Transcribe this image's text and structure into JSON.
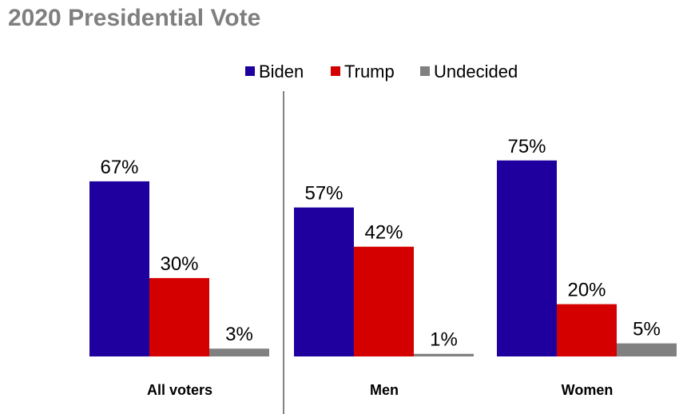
{
  "title": "2020 Presidential Vote",
  "chart_data": {
    "type": "bar",
    "title": "2020 Presidential Vote",
    "categories": [
      "All voters",
      "Men",
      "Women"
    ],
    "series": [
      {
        "name": "Biden",
        "color": "#1f009e",
        "values": [
          67,
          57,
          75
        ],
        "labels": [
          "67%",
          "57%",
          "75%"
        ]
      },
      {
        "name": "Trump",
        "color": "#d40000",
        "values": [
          30,
          42,
          20
        ],
        "labels": [
          "30%",
          "42%",
          "20%"
        ]
      },
      {
        "name": "Undecided",
        "color": "#808080",
        "values": [
          3,
          1,
          5
        ],
        "labels": [
          "3%",
          "1%",
          "5%"
        ]
      }
    ],
    "unit": "%",
    "ylim": [
      0,
      100
    ],
    "legend": "top",
    "grid": false
  }
}
